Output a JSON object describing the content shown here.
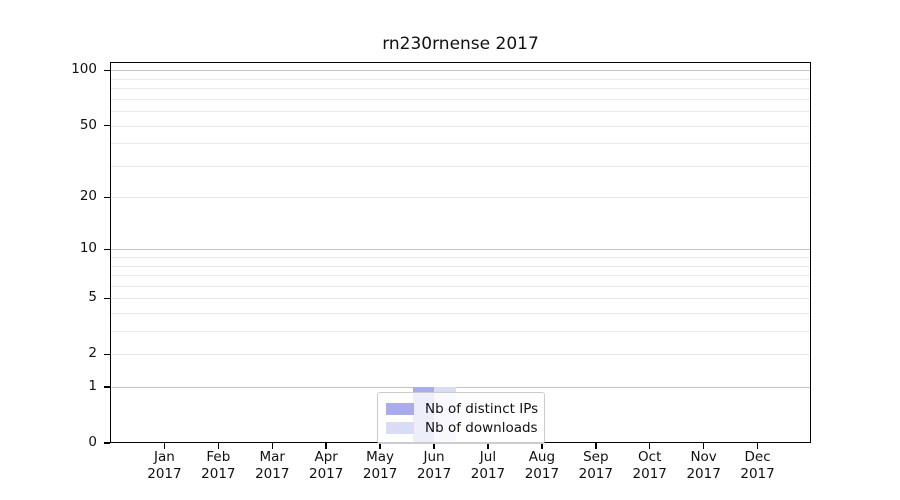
{
  "figure": {
    "background": "#ffffff",
    "spine_color": "#000000",
    "major_grid_color": "#c3c3c3",
    "minor_grid_color": "#e9e9e9",
    "legend_border_color": "#cccccc"
  },
  "chart_data": {
    "type": "bar",
    "title": "rn230rnense 2017",
    "categories": [
      "Jan 2017",
      "Feb 2017",
      "Mar 2017",
      "Apr 2017",
      "May 2017",
      "Jun 2017",
      "Jul 2017",
      "Aug 2017",
      "Sep 2017",
      "Oct 2017",
      "Nov 2017",
      "Dec 2017"
    ],
    "series": [
      {
        "name": "Nb of distinct IPs",
        "color": "#aaabec",
        "values": [
          0,
          0,
          0,
          0,
          0,
          1,
          0,
          0,
          0,
          0,
          0,
          0
        ]
      },
      {
        "name": "Nb of downloads",
        "color": "#dadcf6",
        "values": [
          0,
          0,
          0,
          0,
          0,
          1,
          0,
          0,
          0,
          0,
          0,
          0
        ]
      }
    ],
    "xlabel": "",
    "ylabel": "",
    "yticks": [
      0,
      1,
      2,
      5,
      10,
      20,
      50,
      100
    ],
    "major_gridlines": [
      1,
      10,
      100
    ],
    "minor_gridlines": [
      2,
      3,
      4,
      5,
      6,
      7,
      8,
      9,
      20,
      30,
      40,
      50,
      60,
      70,
      80,
      90
    ],
    "scale": "log1p",
    "ylim": [
      0,
      112
    ],
    "grid": true,
    "legend_position": "bottom-center"
  }
}
